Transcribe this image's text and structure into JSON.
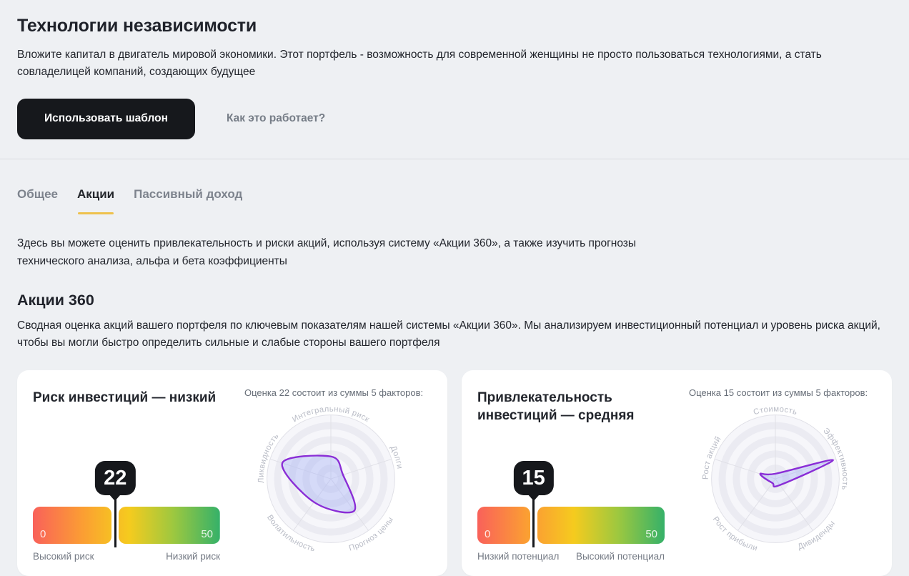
{
  "header": {
    "title": "Технологии независимости",
    "description": "Вложите капитал в двигатель мировой экономики. Этот портфель - возможность для современной женщины не просто пользоваться технологиями, а стать совладелицей компаний, создающих будущее",
    "use_template_button": "Использовать шаблон",
    "how_it_works_link": "Как это работает?"
  },
  "tabs": [
    {
      "label": "Общее",
      "active": false
    },
    {
      "label": "Акции",
      "active": true
    },
    {
      "label": "Пассивный доход",
      "active": false
    }
  ],
  "stocks": {
    "intro": "Здесь вы можете оценить привлекательность и риски акций, используя систему «Акции 360», а также изучить прогнозы технического анализа, альфа и бета коэффициенты",
    "section_title": "Акции 360",
    "section_description": "Сводная оценка акций вашего портфеля по ключевым показателям нашей системы «Акции 360». Мы анализируем инвестиционный потенциал и уровень риска акций, чтобы вы могли быстро определить сильные и слабые стороны вашего портфеля"
  },
  "cards": [
    {
      "title": "Риск инвестиций — низкий",
      "score": 22,
      "min": 0,
      "max": 50,
      "bar_min_label": "0",
      "bar_max_label": "50",
      "left_label": "Высокий риск",
      "right_label": "Низкий риск",
      "radar_caption": "Оценка 22 состоит из суммы 5 факторов:"
    },
    {
      "title": "Привлекательность инвестиций — средняя",
      "score": 15,
      "min": 0,
      "max": 50,
      "bar_min_label": "0",
      "bar_max_label": "50",
      "left_label": "Низкий потенциал",
      "right_label": "Высокий потенциал",
      "radar_caption": "Оценка 15 состоит из суммы 5 факторов:"
    }
  ],
  "chart_data": [
    {
      "type": "gauge",
      "card": "risk",
      "value": 22,
      "range": [
        0,
        50
      ],
      "label_low": "Высокий риск",
      "label_high": "Низкий риск"
    },
    {
      "type": "radar",
      "card": "risk",
      "title": "Оценка 22 состоит из суммы 5 факторов:",
      "axes": [
        "Интегральный риск",
        "Долги",
        "Прогноз цены",
        "Волатильность",
        "Ликвидность"
      ],
      "values": [
        0.35,
        0.2,
        0.62,
        0.45,
        0.8
      ],
      "scale": [
        0,
        1
      ]
    },
    {
      "type": "gauge",
      "card": "attractiveness",
      "value": 15,
      "range": [
        0,
        50
      ],
      "label_low": "Низкий потенциал",
      "label_high": "Высокий потенциал"
    },
    {
      "type": "radar",
      "card": "attractiveness",
      "title": "Оценка 15 состоит из суммы 5 факторов:",
      "axes": [
        "Стоимость",
        "Эффективность",
        "Дивиденды",
        "Рост прибыли",
        "Рост акций"
      ],
      "values": [
        0.08,
        0.95,
        0.12,
        0.08,
        0.25
      ],
      "scale": [
        0,
        1
      ]
    }
  ],
  "colors": {
    "background": "#eef0f3",
    "card": "#ffffff",
    "accent_yellow": "#eec14c",
    "badge": "#16181c",
    "radar_stroke": "#8a2dd6",
    "radar_fill": "rgba(167,178,245,0.42)",
    "gauge_gradient": [
      "#f9615a",
      "#fb9e33",
      "#f5cb1e",
      "#9ec83f",
      "#35b169"
    ]
  }
}
